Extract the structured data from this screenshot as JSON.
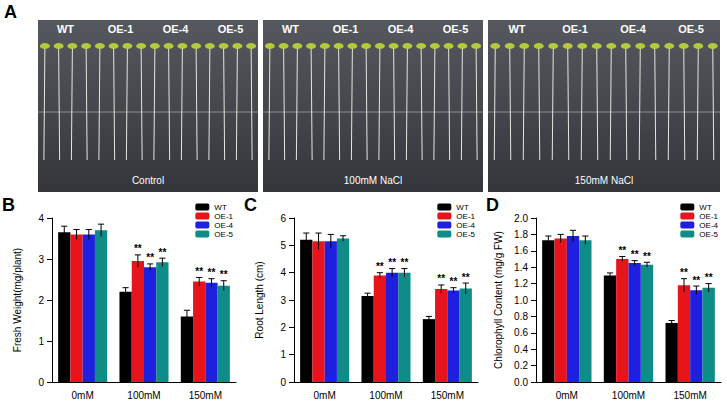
{
  "photo_panel": {
    "panel_label": "A",
    "panels": [
      {
        "label": "Control",
        "genotypes": [
          "WT",
          "OE-1",
          "OE-4",
          "OE-5"
        ]
      },
      {
        "label": "100mM NaCl",
        "genotypes": [
          "WT",
          "OE-1",
          "OE-4",
          "OE-5"
        ]
      },
      {
        "label": "150mM NaCl",
        "genotypes": [
          "WT",
          "OE-1",
          "OE-4",
          "OE-5"
        ]
      }
    ]
  },
  "chart_data": [
    {
      "type": "bar",
      "panel_label": "B",
      "y_label": "Fresh Weight(mg/plant)",
      "categories": [
        "0mM",
        "100mM",
        "150mM"
      ],
      "series": [
        {
          "name": "WT",
          "color": "#000000",
          "values": [
            3.65,
            2.2,
            1.6
          ],
          "errors": [
            0.15,
            0.1,
            0.15
          ],
          "significance": [
            null,
            null,
            null
          ]
        },
        {
          "name": "OE-1",
          "color": "#e8141c",
          "values": [
            3.6,
            2.95,
            2.45
          ],
          "errors": [
            0.12,
            0.15,
            0.1
          ],
          "significance": [
            null,
            "**",
            "**"
          ]
        },
        {
          "name": "OE-4",
          "color": "#1f1fe0",
          "values": [
            3.6,
            2.8,
            2.42
          ],
          "errors": [
            0.12,
            0.08,
            0.1
          ],
          "significance": [
            null,
            "**",
            "**"
          ]
        },
        {
          "name": "OE-5",
          "color": "#0f8c87",
          "values": [
            3.7,
            2.92,
            2.35
          ],
          "errors": [
            0.15,
            0.1,
            0.12
          ],
          "significance": [
            null,
            "**",
            "**"
          ]
        }
      ],
      "ylim": [
        0,
        4
      ],
      "yticks": [
        0,
        1,
        2,
        3,
        4
      ],
      "grid": false,
      "legend": "top right"
    },
    {
      "type": "bar",
      "panel_label": "C",
      "y_label": "Root Length (cm)",
      "categories": [
        "0mM",
        "100mM",
        "150mM"
      ],
      "series": [
        {
          "name": "WT",
          "color": "#000000",
          "values": [
            5.2,
            3.15,
            2.3
          ],
          "errors": [
            0.25,
            0.1,
            0.1
          ],
          "significance": [
            null,
            null,
            null
          ]
        },
        {
          "name": "OE-1",
          "color": "#e8141c",
          "values": [
            5.15,
            3.9,
            3.4
          ],
          "errors": [
            0.3,
            0.1,
            0.15
          ],
          "significance": [
            null,
            "**",
            "**"
          ]
        },
        {
          "name": "OE-4",
          "color": "#1f1fe0",
          "values": [
            5.15,
            4.0,
            3.35
          ],
          "errors": [
            0.25,
            0.15,
            0.1
          ],
          "significance": [
            null,
            "**",
            "**"
          ]
        },
        {
          "name": "OE-5",
          "color": "#0f8c87",
          "values": [
            5.25,
            4.0,
            3.42
          ],
          "errors": [
            0.1,
            0.15,
            0.2
          ],
          "significance": [
            null,
            "**",
            "**"
          ]
        }
      ],
      "ylim": [
        0,
        6
      ],
      "yticks": [
        0,
        1,
        2,
        3,
        4,
        5,
        6
      ],
      "grid": false,
      "legend": "top right"
    },
    {
      "type": "bar",
      "panel_label": "D",
      "y_label": "Chlorophyll Content (mg/g FW)",
      "categories": [
        "0mM",
        "100mM",
        "150mM"
      ],
      "series": [
        {
          "name": "WT",
          "color": "#000000",
          "values": [
            1.73,
            1.3,
            0.72
          ],
          "errors": [
            0.05,
            0.03,
            0.03
          ],
          "significance": [
            null,
            null,
            null
          ]
        },
        {
          "name": "OE-1",
          "color": "#e8141c",
          "values": [
            1.75,
            1.5,
            1.18
          ],
          "errors": [
            0.05,
            0.03,
            0.08
          ],
          "significance": [
            null,
            "**",
            "**"
          ]
        },
        {
          "name": "OE-4",
          "color": "#1f1fe0",
          "values": [
            1.78,
            1.45,
            1.12
          ],
          "errors": [
            0.07,
            0.03,
            0.05
          ],
          "significance": [
            null,
            "**",
            "**"
          ]
        },
        {
          "name": "OE-5",
          "color": "#0f8c87",
          "values": [
            1.73,
            1.43,
            1.15
          ],
          "errors": [
            0.05,
            0.03,
            0.05
          ],
          "significance": [
            null,
            "**",
            "**"
          ]
        }
      ],
      "ylim": [
        0,
        2
      ],
      "yticks": [
        {
          "value": 0,
          "label": "0.0"
        },
        0.2,
        0.4,
        0.6,
        0.8,
        {
          "value": 1,
          "label": "1.0"
        },
        1.2,
        1.4,
        1.6,
        1.8,
        {
          "value": 2,
          "label": "2.0"
        }
      ],
      "grid": false,
      "legend": "top right"
    }
  ]
}
